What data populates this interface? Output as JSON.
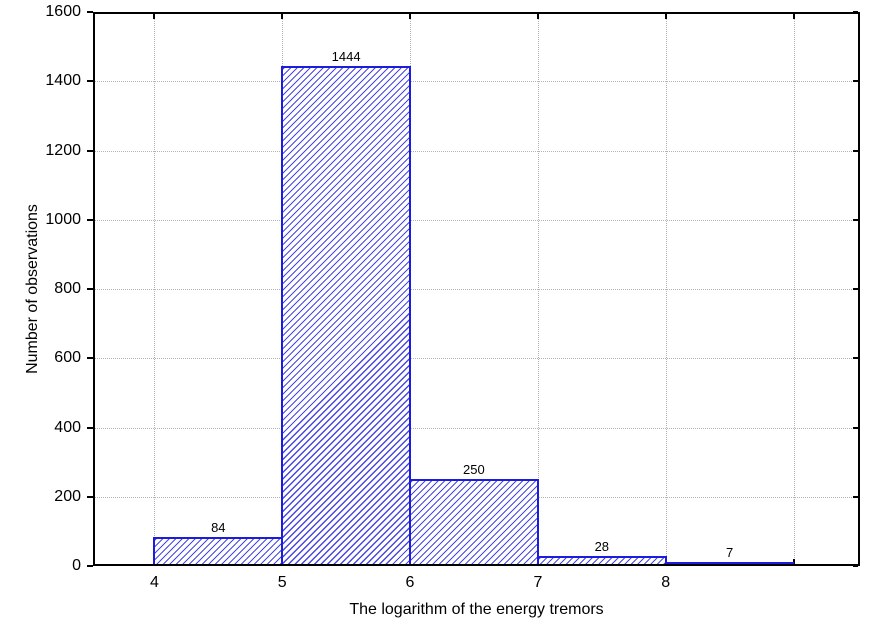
{
  "chart_data": {
    "type": "bar",
    "variant": "histogram",
    "title": "",
    "xlabel": "The logarithm of the energy tremors",
    "ylabel": "Number of observations",
    "bin_edges": [
      4,
      5,
      6,
      7,
      8,
      9
    ],
    "values": [
      84,
      1444,
      250,
      28,
      7
    ],
    "bar_value_labels": [
      "84",
      "1444",
      "250",
      "28",
      "7"
    ],
    "x_tick_values": [
      4,
      5,
      6,
      7,
      8
    ],
    "x_tick_labels": [
      "4",
      "5",
      "6",
      "7",
      "8"
    ],
    "x_grid_values": [
      4,
      5,
      6,
      7,
      8,
      9
    ],
    "y_tick_values": [
      0,
      200,
      400,
      600,
      800,
      1000,
      1200,
      1400,
      1600
    ],
    "y_tick_labels": [
      "0",
      "200",
      "400",
      "600",
      "800",
      "1000",
      "1200",
      "1400",
      "1600"
    ],
    "xlim": [
      3.52,
      9.52
    ],
    "ylim": [
      0,
      1600
    ],
    "grid": "dotted",
    "legend": "none",
    "colors": {
      "bar_border": "#1c1cdf",
      "bar_hatch": "#2828d7",
      "bar_fill": "#ffffff",
      "gridline": "#b4b4b4",
      "axis": "#000000",
      "text": "#000000",
      "background": "#ffffff"
    }
  }
}
